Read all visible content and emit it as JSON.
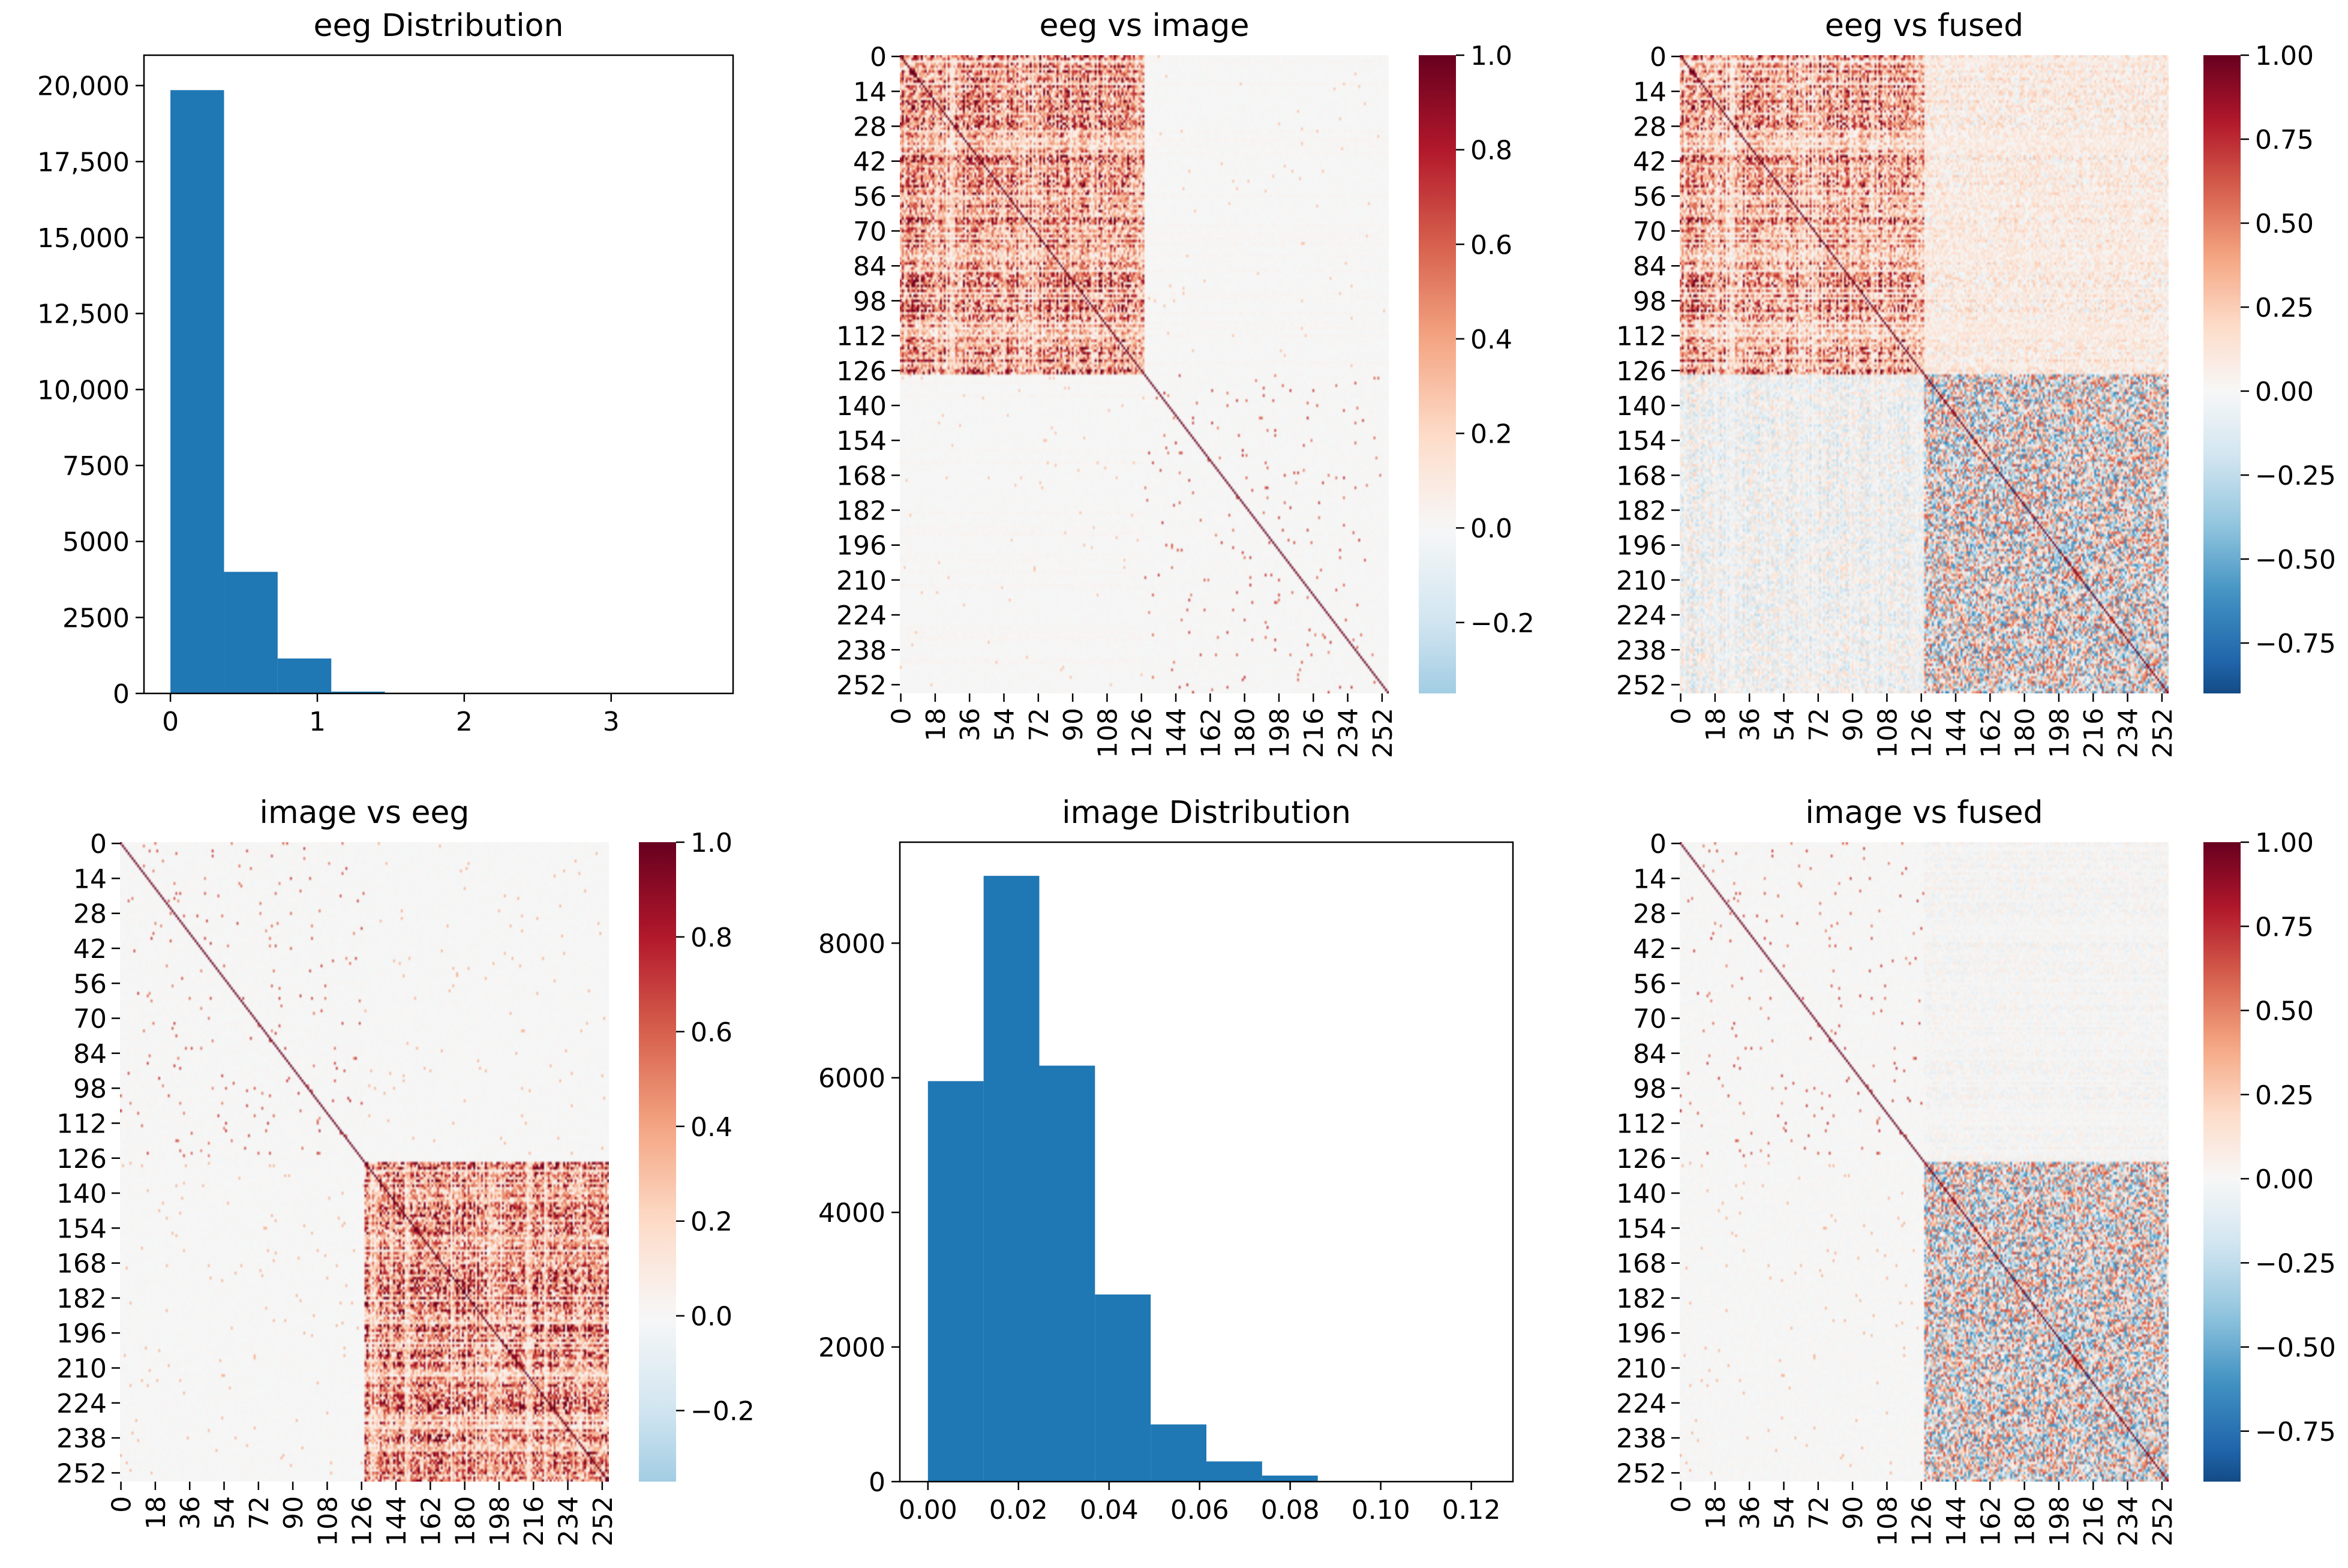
{
  "colors": {
    "bar": "#1f77b4",
    "cmap_stops": [
      "#053061",
      "#2166ac",
      "#4393c3",
      "#92c5de",
      "#d1e5f0",
      "#f7f7f7",
      "#fddbc7",
      "#f4a582",
      "#d6604d",
      "#b2182b",
      "#67001f"
    ]
  },
  "chart_data": [
    {
      "id": "eeg-distribution",
      "type": "bar",
      "title": "eeg Distribution",
      "xlabel": "",
      "ylabel": "",
      "bin_edges": [
        0,
        0.365,
        0.73,
        1.095,
        1.46,
        1.825,
        2.19,
        2.555,
        2.92,
        3.285,
        3.65
      ],
      "values": [
        19850,
        4000,
        1150,
        60,
        15,
        8,
        4,
        2,
        1,
        1
      ],
      "xlim": [
        -0.18,
        3.83
      ],
      "ylim": [
        0,
        21000
      ],
      "xticks": [
        0,
        1,
        2,
        3
      ],
      "xtick_labels": [
        "0",
        "1",
        "2",
        "3"
      ],
      "yticks": [
        0,
        2500,
        5000,
        7500,
        10000,
        12500,
        15000,
        17500,
        20000
      ],
      "ytick_labels": [
        "0",
        "2500",
        "5000",
        "7500",
        "10,000",
        "12,500",
        "15,000",
        "17,500",
        "20,000"
      ]
    },
    {
      "id": "eeg-vs-image",
      "type": "heatmap",
      "title": "eeg vs image",
      "size": 256,
      "pattern": "strong-top-left",
      "ticks": [
        0,
        14,
        28,
        42,
        56,
        70,
        84,
        98,
        112,
        126,
        140,
        154,
        168,
        182,
        196,
        210,
        224,
        238,
        252
      ],
      "xticks": [
        0,
        18,
        36,
        54,
        72,
        90,
        108,
        126,
        144,
        162,
        180,
        198,
        216,
        234,
        252
      ],
      "colorbar": {
        "vmin": -0.35,
        "vmax": 1.0,
        "center": 0,
        "ticks": [
          1.0,
          0.8,
          0.6,
          0.4,
          0.2,
          0.0,
          -0.2
        ],
        "tick_labels": [
          "1.0",
          "0.8",
          "0.6",
          "0.4",
          "0.2",
          "0.0",
          "−0.2"
        ]
      }
    },
    {
      "id": "eeg-vs-fused",
      "type": "heatmap",
      "title": "eeg vs fused",
      "size": 256,
      "pattern": "fused-eeg",
      "ticks": [
        0,
        14,
        28,
        42,
        56,
        70,
        84,
        98,
        112,
        126,
        140,
        154,
        168,
        182,
        196,
        210,
        224,
        238,
        252
      ],
      "xticks": [
        0,
        18,
        36,
        54,
        72,
        90,
        108,
        126,
        144,
        162,
        180,
        198,
        216,
        234,
        252
      ],
      "colorbar": {
        "vmin": -0.9,
        "vmax": 1.0,
        "center": 0,
        "ticks": [
          1.0,
          0.75,
          0.5,
          0.25,
          0.0,
          -0.25,
          -0.5,
          -0.75
        ],
        "tick_labels": [
          "1.00",
          "0.75",
          "0.50",
          "0.25",
          "0.00",
          "−0.25",
          "−0.50",
          "−0.75"
        ]
      }
    },
    {
      "id": "image-vs-eeg",
      "type": "heatmap",
      "title": "image vs eeg",
      "size": 256,
      "pattern": "strong-bottom-right",
      "ticks": [
        0,
        14,
        28,
        42,
        56,
        70,
        84,
        98,
        112,
        126,
        140,
        154,
        168,
        182,
        196,
        210,
        224,
        238,
        252
      ],
      "xticks": [
        0,
        18,
        36,
        54,
        72,
        90,
        108,
        126,
        144,
        162,
        180,
        198,
        216,
        234,
        252
      ],
      "colorbar": {
        "vmin": -0.35,
        "vmax": 1.0,
        "center": 0,
        "ticks": [
          1.0,
          0.8,
          0.6,
          0.4,
          0.2,
          0.0,
          -0.2
        ],
        "tick_labels": [
          "1.0",
          "0.8",
          "0.6",
          "0.4",
          "0.2",
          "0.0",
          "−0.2"
        ]
      }
    },
    {
      "id": "image-distribution",
      "type": "bar",
      "title": "image Distribution",
      "xlabel": "",
      "ylabel": "",
      "bin_edges": [
        0,
        0.0123,
        0.0246,
        0.0369,
        0.0492,
        0.0615,
        0.0738,
        0.0861,
        0.0984,
        0.1107,
        0.123
      ],
      "values": [
        5950,
        9000,
        6180,
        2780,
        850,
        300,
        90,
        10,
        3,
        1
      ],
      "xlim": [
        -0.0062,
        0.1292
      ],
      "ylim": [
        0,
        9500
      ],
      "xticks": [
        0,
        0.02,
        0.04,
        0.06,
        0.08,
        0.1,
        0.12
      ],
      "xtick_labels": [
        "0.00",
        "0.02",
        "0.04",
        "0.06",
        "0.08",
        "0.10",
        "0.12"
      ],
      "yticks": [
        0,
        2000,
        4000,
        6000,
        8000
      ],
      "ytick_labels": [
        "0",
        "2000",
        "4000",
        "6000",
        "8000"
      ]
    },
    {
      "id": "image-vs-fused",
      "type": "heatmap",
      "title": "image vs fused",
      "size": 256,
      "pattern": "fused-image",
      "ticks": [
        0,
        14,
        28,
        42,
        56,
        70,
        84,
        98,
        112,
        126,
        140,
        154,
        168,
        182,
        196,
        210,
        224,
        238,
        252
      ],
      "xticks": [
        0,
        18,
        36,
        54,
        72,
        90,
        108,
        126,
        144,
        162,
        180,
        198,
        216,
        234,
        252
      ],
      "colorbar": {
        "vmin": -0.9,
        "vmax": 1.0,
        "center": 0,
        "ticks": [
          1.0,
          0.75,
          0.5,
          0.25,
          0.0,
          -0.25,
          -0.5,
          -0.75
        ],
        "tick_labels": [
          "1.00",
          "0.75",
          "0.50",
          "0.25",
          "0.00",
          "−0.25",
          "−0.50",
          "−0.75"
        ]
      }
    }
  ]
}
